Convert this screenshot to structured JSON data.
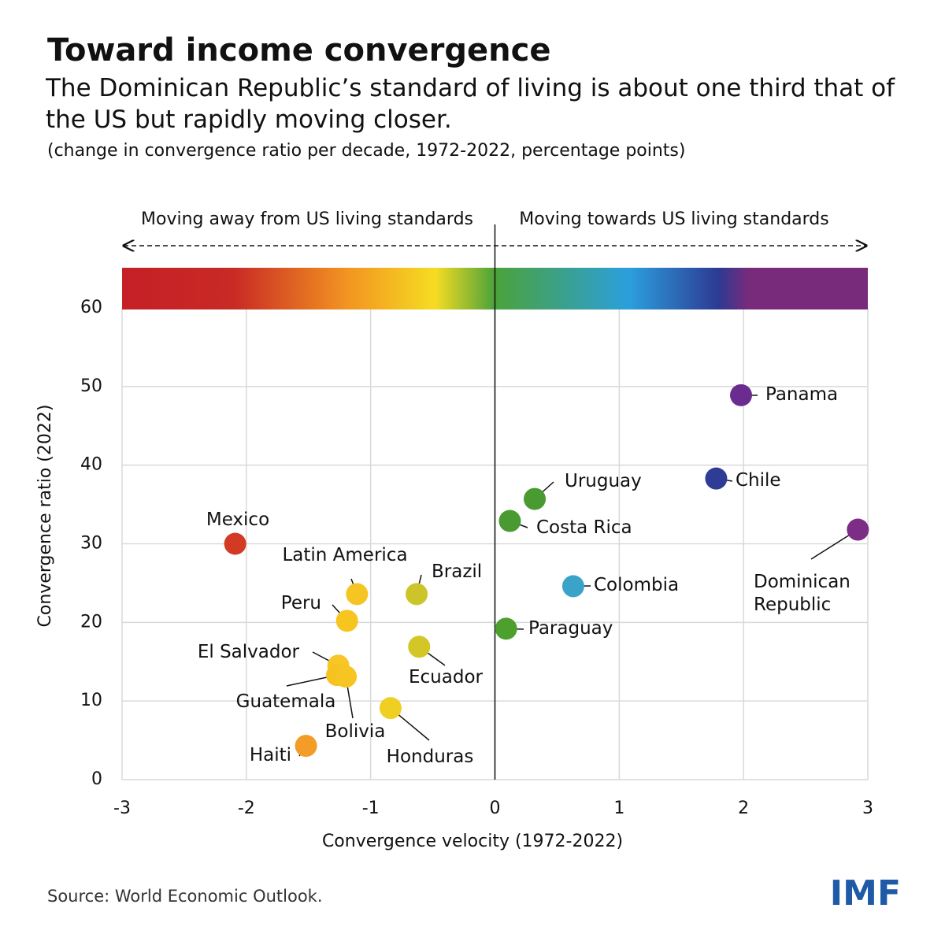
{
  "chart_data": {
    "type": "scatter",
    "title": "Toward income convergence",
    "subtitle": "The Dominican Republic’s standard of living is about one third that of the US but rapidly moving closer.",
    "note": "(change in convergence ratio per decade, 1972-2022, percentage points)",
    "annotations": [
      "Moving away from US living standards",
      "Moving towards US living standards"
    ],
    "xlabel": "Convergence velocity (1972-2022)",
    "ylabel": "Convergence ratio (2022)",
    "xlim": [
      -3,
      3
    ],
    "ylim": [
      0,
      60
    ],
    "xticks": [
      -3,
      -2,
      -1,
      0,
      1,
      2,
      3
    ],
    "yticks": [
      0,
      10,
      20,
      30,
      40,
      50,
      60
    ],
    "grid": true,
    "categories": [
      "Panama",
      "Chile",
      "Uruguay",
      "Costa Rica",
      "Dominican Republic",
      "Colombia",
      "Paraguay",
      "Mexico",
      "Latin America",
      "Brazil",
      "Peru",
      "Ecuador",
      "El Salvador",
      "Guatemala",
      "Bolivia",
      "Honduras",
      "Haiti"
    ],
    "x": [
      1.98,
      1.78,
      0.32,
      0.12,
      2.92,
      0.63,
      0.09,
      -2.09,
      -1.11,
      -0.63,
      -1.19,
      -0.61,
      -1.26,
      -1.27,
      -1.2,
      -0.84,
      -1.52
    ],
    "values": [
      48.9,
      38.3,
      35.7,
      32.9,
      31.8,
      24.6,
      19.2,
      30.0,
      23.6,
      23.6,
      20.2,
      16.9,
      14.5,
      13.3,
      13.1,
      9.1,
      4.3
    ],
    "colors": [
      "#6a2d8f",
      "#2e3c96",
      "#4a9a32",
      "#4a9a32",
      "#7d2d86",
      "#3aa4c8",
      "#4ea02e",
      "#d23a24",
      "#f5c523",
      "#ccc52a",
      "#f7c520",
      "#d4c626",
      "#f8c628",
      "#f5c21f",
      "#f6c521",
      "#efcf22",
      "#f39c27"
    ],
    "source": "Source: World Economic Outlook.",
    "logo": "IMF"
  }
}
